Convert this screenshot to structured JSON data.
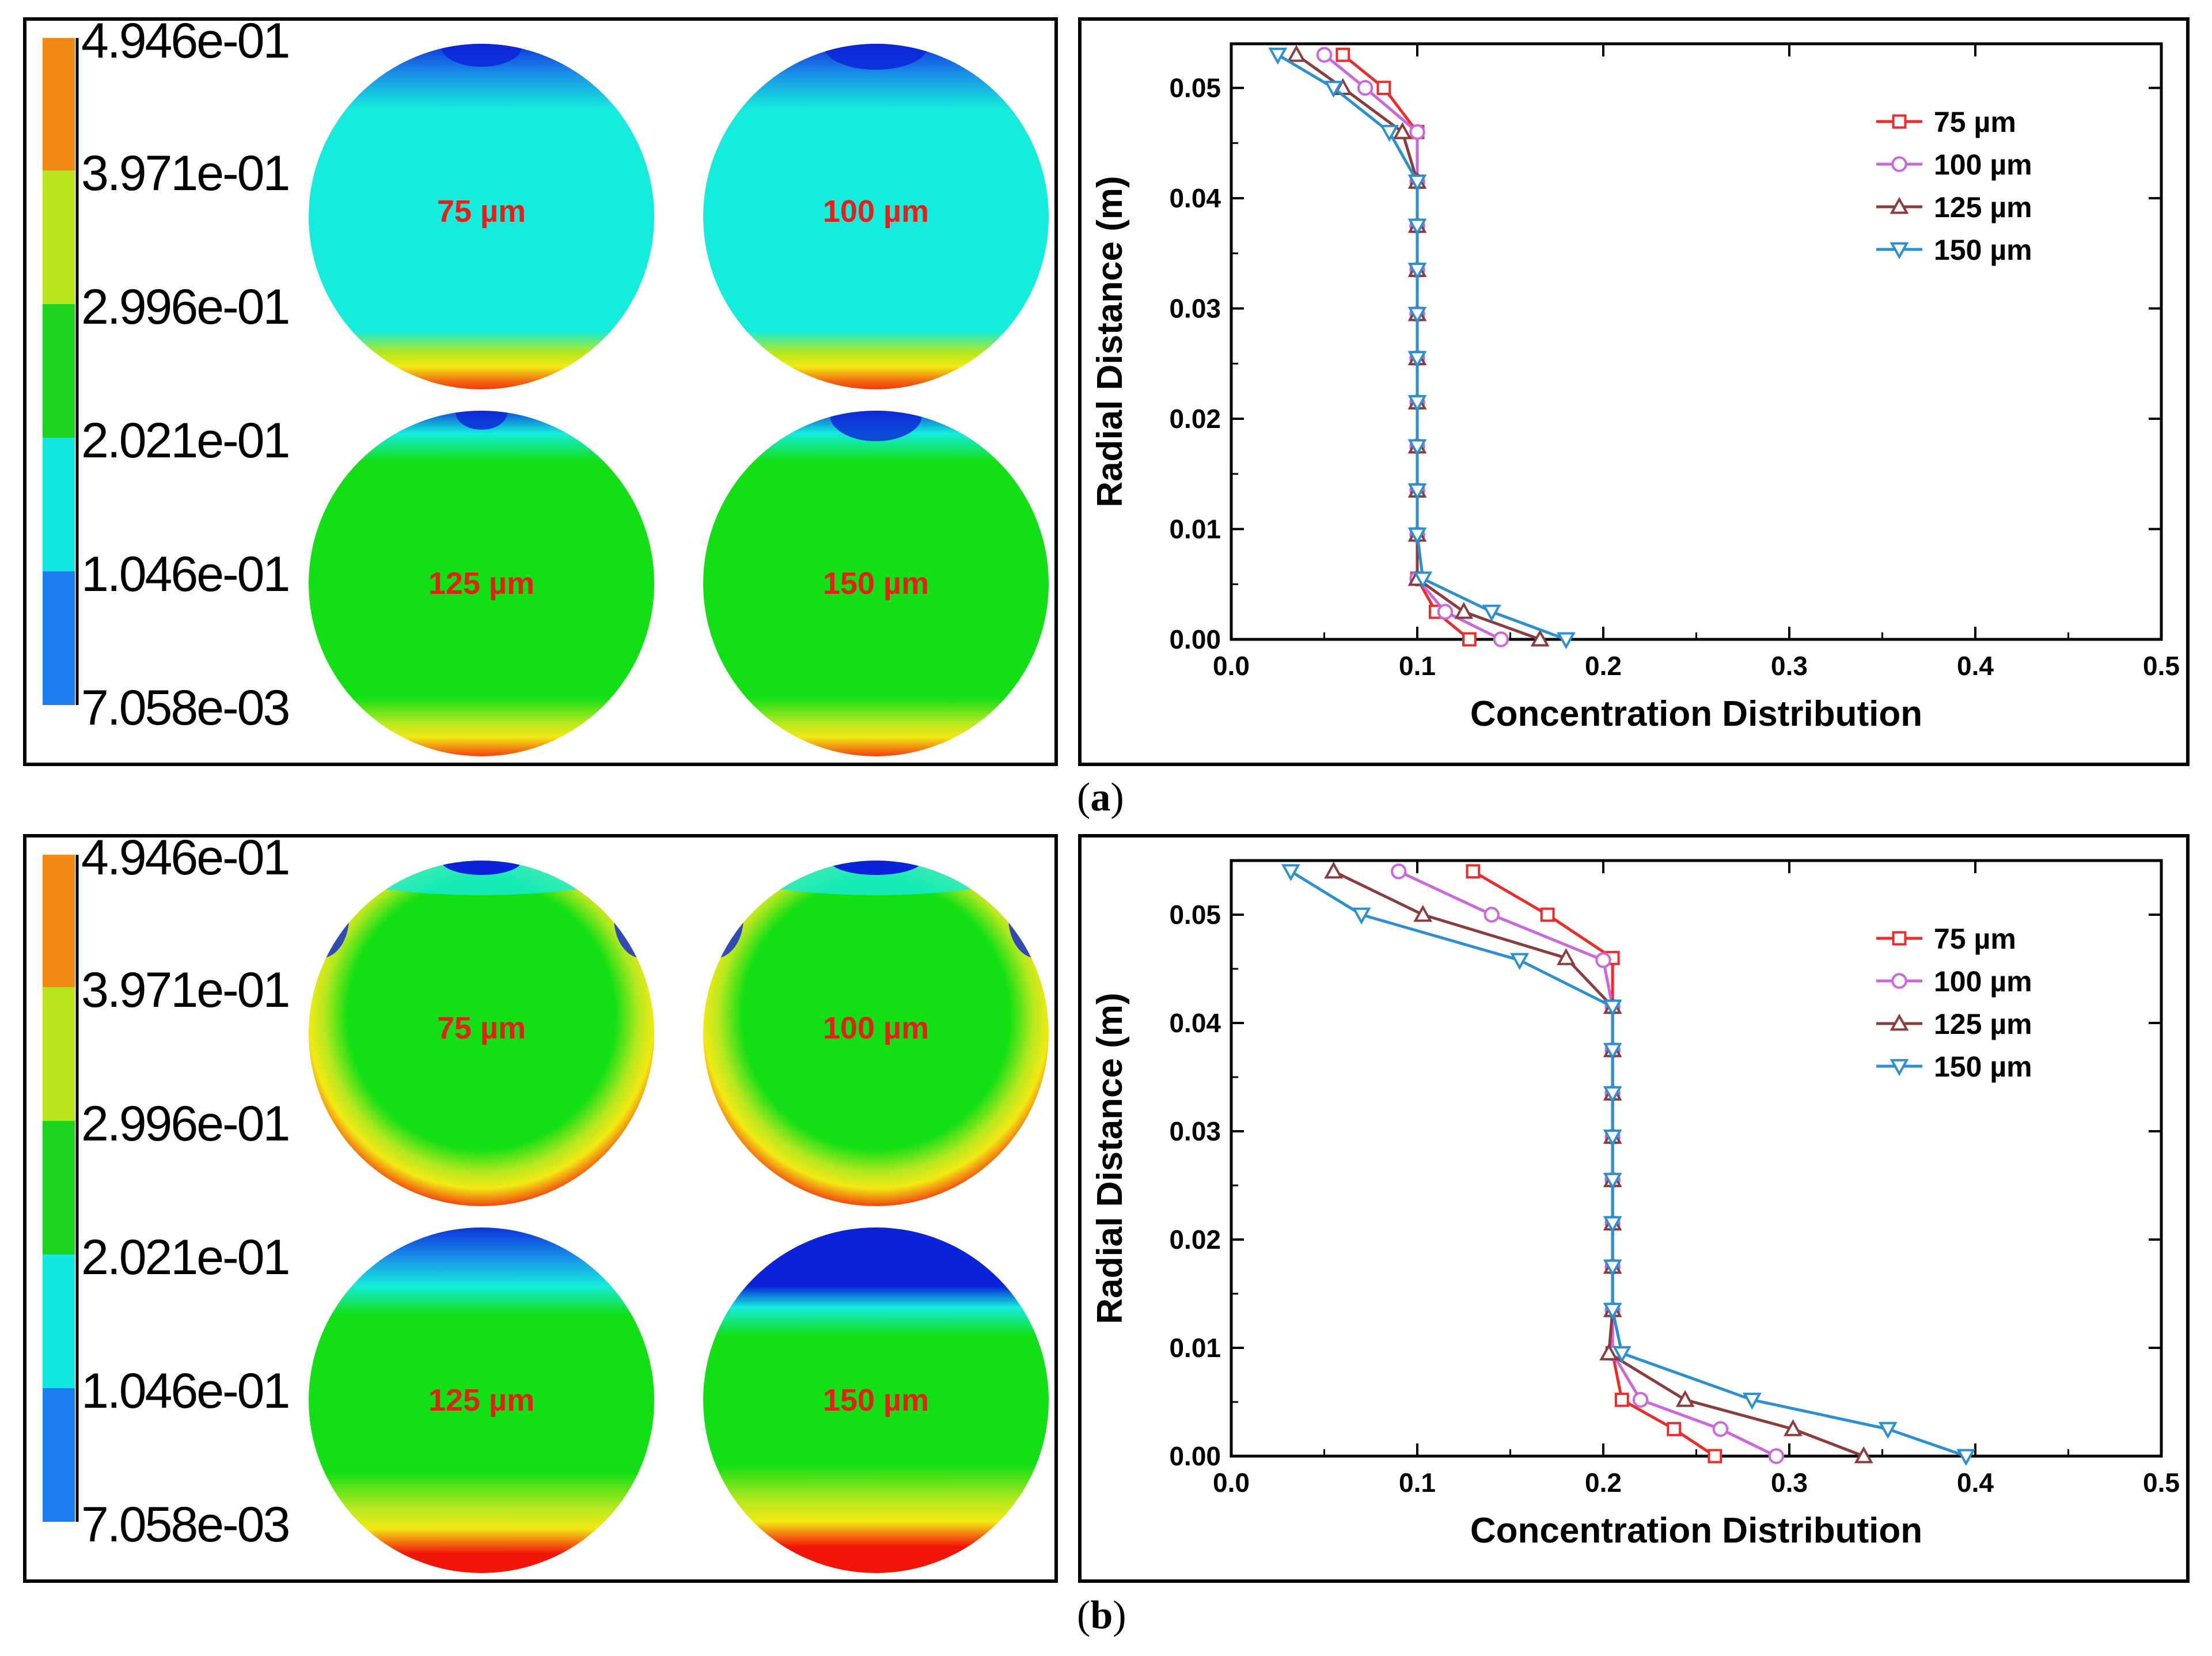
{
  "colorbar": {
    "labels": [
      "4.946e-01",
      "3.971e-01",
      "2.996e-01",
      "2.021e-01",
      "1.046e-01",
      "7.058e-03"
    ],
    "colors": [
      "#f38a15",
      "#b8e31d",
      "#1ed31e",
      "#13e8e0",
      "#1f7df0"
    ]
  },
  "contour_colors": {
    "low": "#0b22d8",
    "cyan": "#15ecdc",
    "green": "#12df14",
    "yellow": "#f2e914",
    "red": "#f21509"
  },
  "panels": [
    {
      "label": "a",
      "contour_labels": [
        "75 µm",
        "100 µm",
        "125 µm",
        "150 µm"
      ],
      "label_color": "#e4201b"
    },
    {
      "label": "b",
      "contour_labels": [
        "75 µm",
        "100 µm",
        "125 µm",
        "150 µm"
      ],
      "label_color": "#e4201b"
    }
  ],
  "chart_data": [
    {
      "type": "line",
      "panel": "a",
      "xlabel": "Concentration Distribution",
      "ylabel": "Radial Distance (m)",
      "xlim": [
        0.0,
        0.5
      ],
      "ylim": [
        0.0,
        0.054
      ],
      "xticks": [
        "0.0",
        "0.1",
        "0.2",
        "0.3",
        "0.4",
        "0.5"
      ],
      "yticks": [
        "0.00",
        "0.01",
        "0.02",
        "0.03",
        "0.04",
        "0.05"
      ],
      "legend_position": "top-right",
      "series": [
        {
          "name": "75 µm",
          "color": "#ee2b2b",
          "marker": "square",
          "points": [
            [
              0.128,
              0.0
            ],
            [
              0.11,
              0.0025
            ],
            [
              0.1,
              0.0055
            ],
            [
              0.1,
              0.0095
            ],
            [
              0.1,
              0.0135
            ],
            [
              0.1,
              0.0175
            ],
            [
              0.1,
              0.0215
            ],
            [
              0.1,
              0.0255
            ],
            [
              0.1,
              0.0295
            ],
            [
              0.1,
              0.0335
            ],
            [
              0.1,
              0.0375
            ],
            [
              0.1,
              0.0415
            ],
            [
              0.1,
              0.046
            ],
            [
              0.082,
              0.05
            ],
            [
              0.06,
              0.053
            ]
          ]
        },
        {
          "name": "100 µm",
          "color": "#cc66dd",
          "marker": "circle",
          "points": [
            [
              0.145,
              0.0
            ],
            [
              0.115,
              0.0025
            ],
            [
              0.1,
              0.0055
            ],
            [
              0.1,
              0.0095
            ],
            [
              0.1,
              0.0135
            ],
            [
              0.1,
              0.0175
            ],
            [
              0.1,
              0.0215
            ],
            [
              0.1,
              0.0255
            ],
            [
              0.1,
              0.0295
            ],
            [
              0.1,
              0.0335
            ],
            [
              0.1,
              0.0375
            ],
            [
              0.1,
              0.0415
            ],
            [
              0.1,
              0.046
            ],
            [
              0.072,
              0.05
            ],
            [
              0.05,
              0.053
            ]
          ]
        },
        {
          "name": "125 µm",
          "color": "#8b3c3c",
          "marker": "triangle-up",
          "points": [
            [
              0.166,
              0.0
            ],
            [
              0.125,
              0.0025
            ],
            [
              0.1,
              0.0055
            ],
            [
              0.1,
              0.0095
            ],
            [
              0.1,
              0.0135
            ],
            [
              0.1,
              0.0175
            ],
            [
              0.1,
              0.0215
            ],
            [
              0.1,
              0.0255
            ],
            [
              0.1,
              0.0295
            ],
            [
              0.1,
              0.0335
            ],
            [
              0.1,
              0.0375
            ],
            [
              0.1,
              0.0415
            ],
            [
              0.092,
              0.046
            ],
            [
              0.06,
              0.05
            ],
            [
              0.035,
              0.053
            ]
          ]
        },
        {
          "name": "150 µm",
          "color": "#2b8fd0",
          "marker": "triangle-down",
          "points": [
            [
              0.18,
              0.0
            ],
            [
              0.14,
              0.0025
            ],
            [
              0.103,
              0.0055
            ],
            [
              0.1,
              0.0095
            ],
            [
              0.1,
              0.0135
            ],
            [
              0.1,
              0.0175
            ],
            [
              0.1,
              0.0215
            ],
            [
              0.1,
              0.0255
            ],
            [
              0.1,
              0.0295
            ],
            [
              0.1,
              0.0335
            ],
            [
              0.1,
              0.0375
            ],
            [
              0.1,
              0.0415
            ],
            [
              0.085,
              0.046
            ],
            [
              0.055,
              0.05
            ],
            [
              0.025,
              0.053
            ]
          ]
        }
      ]
    },
    {
      "type": "line",
      "panel": "b",
      "xlabel": "Concentration Distribution",
      "ylabel": "Radial Distance (m)",
      "xlim": [
        0.0,
        0.5
      ],
      "ylim": [
        0.0,
        0.055
      ],
      "xticks": [
        "0.0",
        "0.1",
        "0.2",
        "0.3",
        "0.4",
        "0.5"
      ],
      "yticks": [
        "0.00",
        "0.01",
        "0.02",
        "0.03",
        "0.04",
        "0.05"
      ],
      "legend_position": "top-right",
      "series": [
        {
          "name": "75 µm",
          "color": "#ee2b2b",
          "marker": "square",
          "points": [
            [
              0.26,
              0.0
            ],
            [
              0.238,
              0.0025
            ],
            [
              0.21,
              0.0052
            ],
            [
              0.205,
              0.0095
            ],
            [
              0.205,
              0.0135
            ],
            [
              0.205,
              0.0175
            ],
            [
              0.205,
              0.0215
            ],
            [
              0.205,
              0.0255
            ],
            [
              0.205,
              0.0295
            ],
            [
              0.205,
              0.0335
            ],
            [
              0.205,
              0.0375
            ],
            [
              0.205,
              0.0415
            ],
            [
              0.205,
              0.046
            ],
            [
              0.17,
              0.05
            ],
            [
              0.13,
              0.054
            ]
          ]
        },
        {
          "name": "100 µm",
          "color": "#cc66dd",
          "marker": "circle",
          "points": [
            [
              0.293,
              0.0
            ],
            [
              0.263,
              0.0025
            ],
            [
              0.22,
              0.0052
            ],
            [
              0.205,
              0.0095
            ],
            [
              0.205,
              0.0135
            ],
            [
              0.205,
              0.0175
            ],
            [
              0.205,
              0.0215
            ],
            [
              0.205,
              0.0255
            ],
            [
              0.205,
              0.0295
            ],
            [
              0.205,
              0.0335
            ],
            [
              0.205,
              0.0375
            ],
            [
              0.205,
              0.0415
            ],
            [
              0.2,
              0.0458
            ],
            [
              0.14,
              0.05
            ],
            [
              0.09,
              0.054
            ]
          ]
        },
        {
          "name": "125 µm",
          "color": "#8b3c3c",
          "marker": "triangle-up",
          "points": [
            [
              0.34,
              0.0
            ],
            [
              0.302,
              0.0025
            ],
            [
              0.244,
              0.0052
            ],
            [
              0.203,
              0.0095
            ],
            [
              0.205,
              0.0135
            ],
            [
              0.205,
              0.0175
            ],
            [
              0.205,
              0.0215
            ],
            [
              0.205,
              0.0255
            ],
            [
              0.205,
              0.0295
            ],
            [
              0.205,
              0.0335
            ],
            [
              0.205,
              0.0375
            ],
            [
              0.205,
              0.0415
            ],
            [
              0.18,
              0.046
            ],
            [
              0.103,
              0.05
            ],
            [
              0.055,
              0.054
            ]
          ]
        },
        {
          "name": "150 µm",
          "color": "#2b8fd0",
          "marker": "triangle-down",
          "points": [
            [
              0.395,
              0.0
            ],
            [
              0.353,
              0.0025
            ],
            [
              0.28,
              0.0052
            ],
            [
              0.21,
              0.0095
            ],
            [
              0.205,
              0.0135
            ],
            [
              0.205,
              0.0175
            ],
            [
              0.205,
              0.0215
            ],
            [
              0.205,
              0.0255
            ],
            [
              0.205,
              0.0295
            ],
            [
              0.205,
              0.0335
            ],
            [
              0.205,
              0.0375
            ],
            [
              0.205,
              0.0415
            ],
            [
              0.155,
              0.0458
            ],
            [
              0.07,
              0.05
            ],
            [
              0.032,
              0.054
            ]
          ]
        }
      ]
    }
  ]
}
